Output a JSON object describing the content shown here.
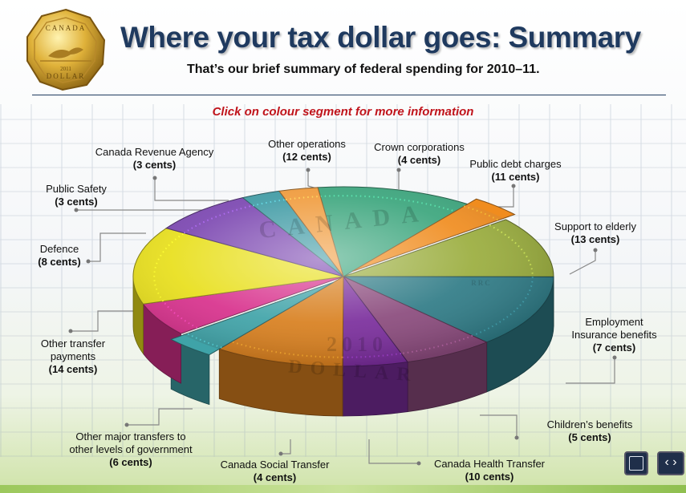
{
  "header": {
    "title": "Where your tax dollar goes:  Summary",
    "subtitle": "That’s our brief summary of federal spending for 2010–11.",
    "instruction": "Click on colour segment for more information"
  },
  "coin_logo_text": [
    "CANADA",
    "DOLLAR",
    "2011"
  ],
  "coin_engraving": [
    "CANADA",
    "2010",
    "DOLLAR",
    "RRC"
  ],
  "chart_data": {
    "type": "pie",
    "unit": "cents",
    "slices": [
      {
        "label": "Other operations",
        "value": 12,
        "color": "#3aa57c"
      },
      {
        "label": "Crown corporations",
        "value": 4,
        "color": "#f08c1e"
      },
      {
        "label": "Public debt charges",
        "value": 11,
        "color": "#9aad3d"
      },
      {
        "label": "Support to elderly",
        "value": 13,
        "color": "#2f7b86"
      },
      {
        "label": "Employment Insurance benefits",
        "value": 7,
        "color": "#8a4a7c"
      },
      {
        "label": "Children’s benefits",
        "value": 5,
        "color": "#7a2d9c"
      },
      {
        "label": "Canada Health Transfer",
        "value": 10,
        "color": "#d87f1e"
      },
      {
        "label": "Canada Social Transfer",
        "value": 4,
        "color": "#3fa3a8"
      },
      {
        "label": "Other major transfers to other levels of government",
        "value": 6,
        "color": "#d8308c"
      },
      {
        "label": "Other transfer payments",
        "value": 14,
        "color": "#e8df1a"
      },
      {
        "label": "Defence",
        "value": 8,
        "color": "#7a45b0"
      },
      {
        "label": "Public Safety",
        "value": 3,
        "color": "#3e9aa4"
      },
      {
        "label": "Canada Revenue Agency",
        "value": 3,
        "color": "#f09a3a"
      }
    ]
  },
  "labels": [
    {
      "name": "Canada Revenue Agency",
      "lines": [
        "Canada Revenue Agency"
      ],
      "value": "(3 cents)"
    },
    {
      "name": "Other operations",
      "lines": [
        "Other operations"
      ],
      "value": "(12 cents)"
    },
    {
      "name": "Crown corporations",
      "lines": [
        "Crown corporations"
      ],
      "value": "(4 cents)"
    },
    {
      "name": "Public debt charges",
      "lines": [
        "Public debt charges"
      ],
      "value": "(11 cents)"
    },
    {
      "name": "Public Safety",
      "lines": [
        "Public Safety"
      ],
      "value": "(3 cents)"
    },
    {
      "name": "Support to elderly",
      "lines": [
        "Support to elderly"
      ],
      "value": "(13 cents)"
    },
    {
      "name": "Defence",
      "lines": [
        "Defence"
      ],
      "value": "(8 cents)"
    },
    {
      "name": "Employment Insurance benefits",
      "lines": [
        "Employment",
        "Insurance benefits"
      ],
      "value": "(7 cents)"
    },
    {
      "name": "Other transfer payments",
      "lines": [
        "Other transfer",
        "payments"
      ],
      "value": "(14 cents)"
    },
    {
      "name": "Children’s benefits",
      "lines": [
        "Children’s benefits"
      ],
      "value": "(5 cents)"
    },
    {
      "name": "Other major transfers",
      "lines": [
        "Other major transfers to",
        "other levels of government"
      ],
      "value": "(6 cents)"
    },
    {
      "name": "Canada Social Transfer",
      "lines": [
        "Canada Social Transfer"
      ],
      "value": "(4 cents)"
    },
    {
      "name": "Canada Health Transfer",
      "lines": [
        "Canada Health Transfer"
      ],
      "value": "(10 cents)"
    }
  ],
  "controls": {
    "fullscreen_icon": "expand-icon",
    "nav_icon": "prev-next-icon",
    "nav_glyph": "‹ ›"
  }
}
